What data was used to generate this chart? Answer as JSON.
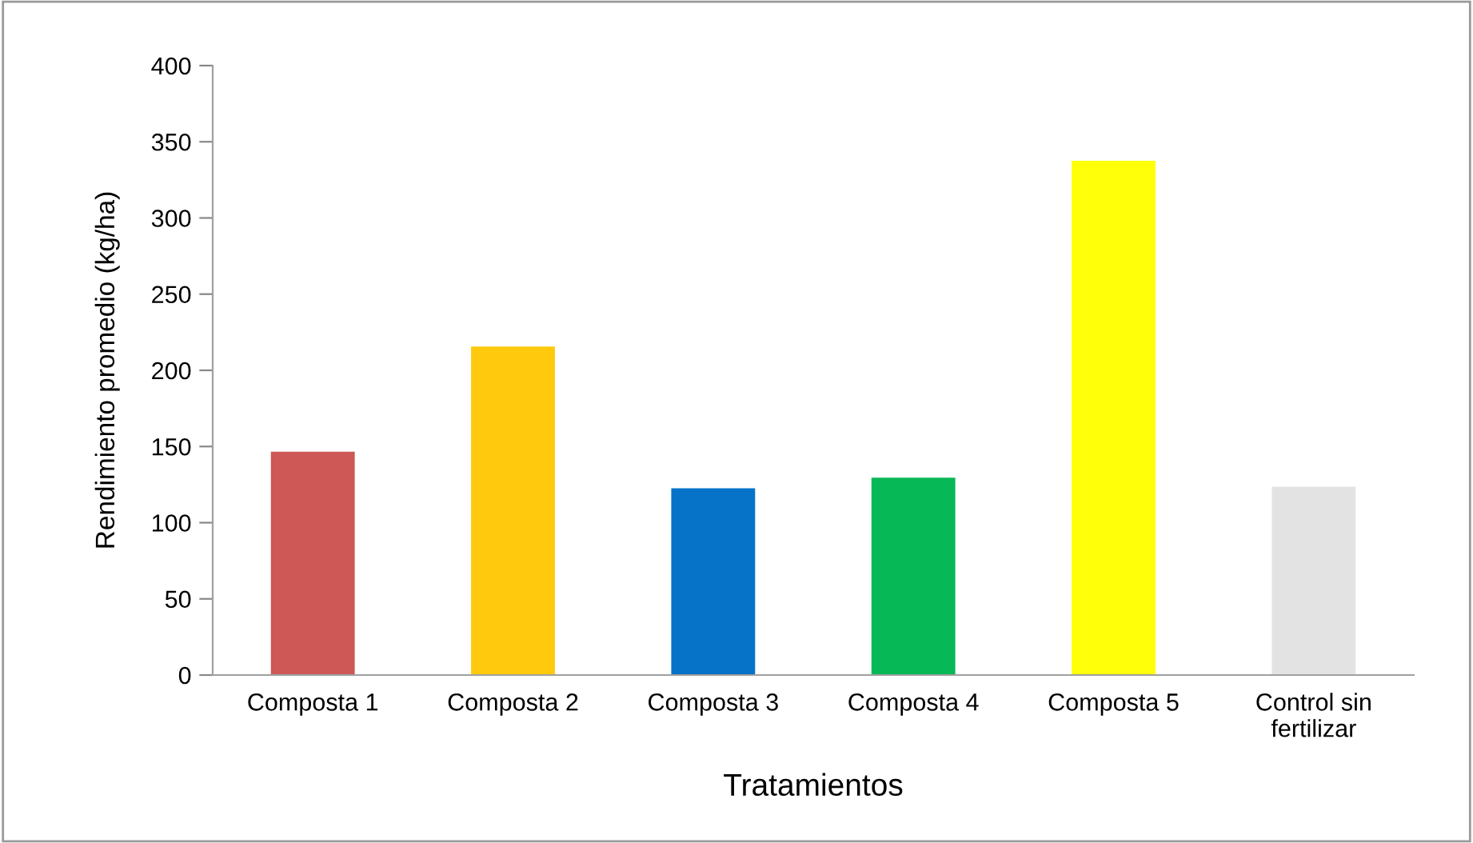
{
  "chart_data": {
    "type": "bar",
    "xlabel": "Tratamientos",
    "ylabel": "Rendimiento promedio (kg/ha)",
    "categories": [
      "Composta 1",
      "Composta 2",
      "Composta 3",
      "Composta 4",
      "Composta 5",
      "Control sin\nfertilizar"
    ],
    "values": [
      146,
      215,
      122,
      129,
      337,
      123
    ],
    "colors": [
      "#cd5855",
      "#ffc90e",
      "#0673c8",
      "#07b856",
      "#ffff0a",
      "#e3e3e3"
    ],
    "ylim": [
      0,
      400
    ],
    "yticks": [
      0,
      50,
      100,
      150,
      200,
      250,
      300,
      350,
      400
    ],
    "grid": false
  }
}
